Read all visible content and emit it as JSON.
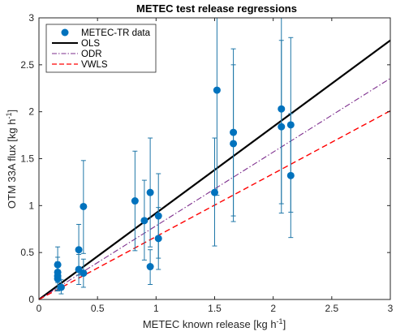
{
  "chart_data": {
    "type": "scatter",
    "title": "METEC test release regressions",
    "xlabel": "METEC known release [kg h",
    "ylabel": "OTM 33A flux [kg h",
    "unit_exponent": "-1",
    "xlim": [
      0,
      3
    ],
    "ylim": [
      0,
      3
    ],
    "xticks": [
      "0",
      "0.5",
      "1",
      "1.5",
      "2",
      "2.5",
      "3"
    ],
    "yticks": [
      "0",
      "0.5",
      "1",
      "1.5",
      "2",
      "2.5",
      "3"
    ],
    "grid": false,
    "legend_position": "top-left",
    "legend": [
      "METEC-TR data",
      "OLS",
      "ODR",
      "VWLS"
    ],
    "colors": {
      "data": "#0072BD",
      "errorbar": "#1f77a8",
      "ols": "#000000",
      "odr": "#7E2F8E",
      "vwls": "#FF0000"
    },
    "points": [
      {
        "x": 0.16,
        "y": 0.37,
        "lo": 0.18,
        "hi": 0.56
      },
      {
        "x": 0.16,
        "y": 0.29,
        "lo": 0.12,
        "hi": 0.45
      },
      {
        "x": 0.16,
        "y": 0.25,
        "lo": 0.1,
        "hi": 0.4
      },
      {
        "x": 0.16,
        "y": 0.22,
        "lo": 0.09,
        "hi": 0.36
      },
      {
        "x": 0.19,
        "y": 0.13,
        "lo": 0.06,
        "hi": 0.21
      },
      {
        "x": 0.34,
        "y": 0.53,
        "lo": 0.26,
        "hi": 0.8
      },
      {
        "x": 0.34,
        "y": 0.32,
        "lo": 0.16,
        "hi": 0.48
      },
      {
        "x": 0.38,
        "y": 0.99,
        "lo": 0.49,
        "hi": 1.48
      },
      {
        "x": 0.38,
        "y": 0.28,
        "lo": 0.13,
        "hi": 0.43
      },
      {
        "x": 0.82,
        "y": 1.05,
        "lo": 0.52,
        "hi": 1.58
      },
      {
        "x": 0.9,
        "y": 0.84,
        "lo": 0.42,
        "hi": 1.27
      },
      {
        "x": 0.95,
        "y": 1.14,
        "lo": 0.56,
        "hi": 1.72
      },
      {
        "x": 0.95,
        "y": 0.35,
        "lo": 0.16,
        "hi": 0.53
      },
      {
        "x": 1.02,
        "y": 0.89,
        "lo": 0.44,
        "hi": 1.34
      },
      {
        "x": 1.02,
        "y": 0.65,
        "lo": 0.32,
        "hi": 0.98
      },
      {
        "x": 1.5,
        "y": 1.14,
        "lo": 0.57,
        "hi": 1.72
      },
      {
        "x": 1.52,
        "y": 2.23,
        "lo": 1.11,
        "hi": 3.35
      },
      {
        "x": 1.66,
        "y": 1.78,
        "lo": 0.89,
        "hi": 2.67
      },
      {
        "x": 1.66,
        "y": 1.66,
        "lo": 0.83,
        "hi": 2.5
      },
      {
        "x": 2.07,
        "y": 2.03,
        "lo": 1.02,
        "hi": 3.05
      },
      {
        "x": 2.07,
        "y": 1.84,
        "lo": 0.92,
        "hi": 2.76
      },
      {
        "x": 2.15,
        "y": 1.86,
        "lo": 0.93,
        "hi": 2.79
      },
      {
        "x": 2.15,
        "y": 1.32,
        "lo": 0.66,
        "hi": 1.98
      }
    ],
    "fits": [
      {
        "name": "OLS",
        "slope": 0.92,
        "style": "solid"
      },
      {
        "name": "ODR",
        "slope": 0.785,
        "style": "dashdot"
      },
      {
        "name": "VWLS",
        "slope": 0.67,
        "style": "dashed"
      }
    ]
  }
}
